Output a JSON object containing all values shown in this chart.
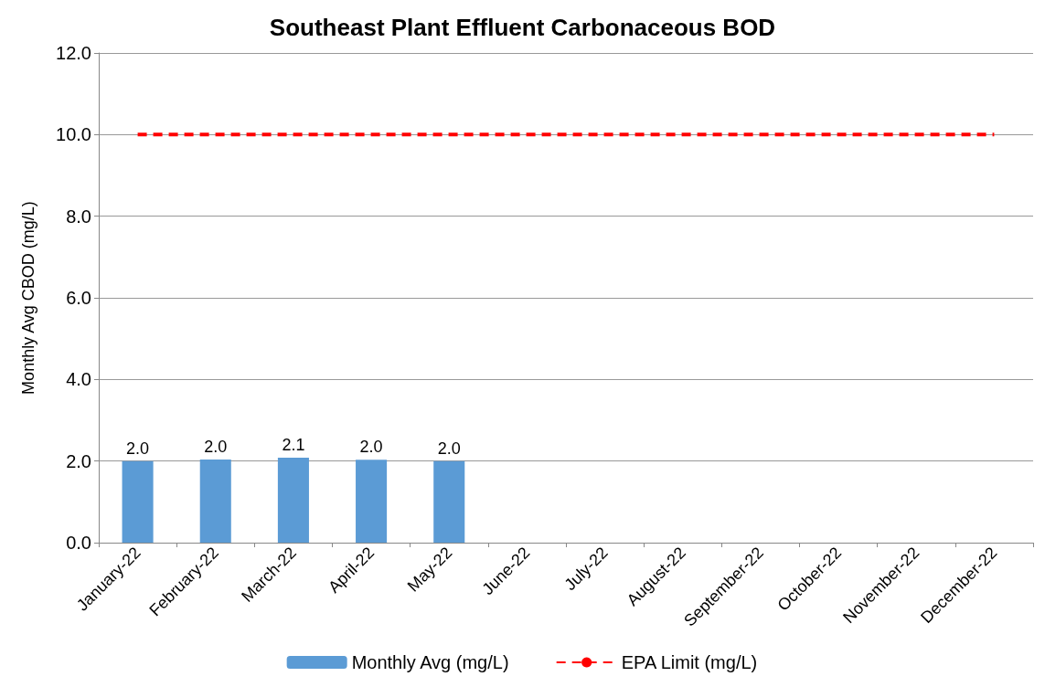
{
  "chart_data": {
    "type": "bar",
    "title": "Southeast Plant Effluent Carbonaceous BOD",
    "ylabel": "Monthly Avg CBOD (mg/L)",
    "categories": [
      "January-22",
      "February-22",
      "March-22",
      "April-22",
      "May-22",
      "June-22",
      "July-22",
      "August-22",
      "September-22",
      "October-22",
      "November-22",
      "December-22"
    ],
    "series": [
      {
        "name": "Monthly Avg (mg/L)",
        "color": "#5b9bd5",
        "values": [
          2.0,
          2.04,
          2.08,
          2.03,
          2.0,
          null,
          null,
          null,
          null,
          null,
          null,
          null
        ],
        "value_labels": [
          "2.0",
          "2.0",
          "2.1",
          "2.0",
          "2.0",
          null,
          null,
          null,
          null,
          null,
          null,
          null
        ]
      },
      {
        "name": "EPA Limit (mg/L)",
        "type": "line",
        "color": "#ff0000",
        "line_style": "dashed",
        "marker": "none",
        "values": [
          10,
          10,
          10,
          10,
          10,
          10,
          10,
          10,
          10,
          10,
          10,
          10
        ]
      }
    ],
    "ylim": [
      0,
      12
    ],
    "yticks": [
      {
        "value": 0,
        "label": "0.0"
      },
      {
        "value": 2,
        "label": "2.0"
      },
      {
        "value": 4,
        "label": "4.0"
      },
      {
        "value": 6,
        "label": "6.0"
      },
      {
        "value": 8,
        "label": "8.0"
      },
      {
        "value": 10,
        "label": "10.0"
      },
      {
        "value": 12,
        "label": "12.0"
      }
    ],
    "grid": "y",
    "legend": "bottom"
  }
}
